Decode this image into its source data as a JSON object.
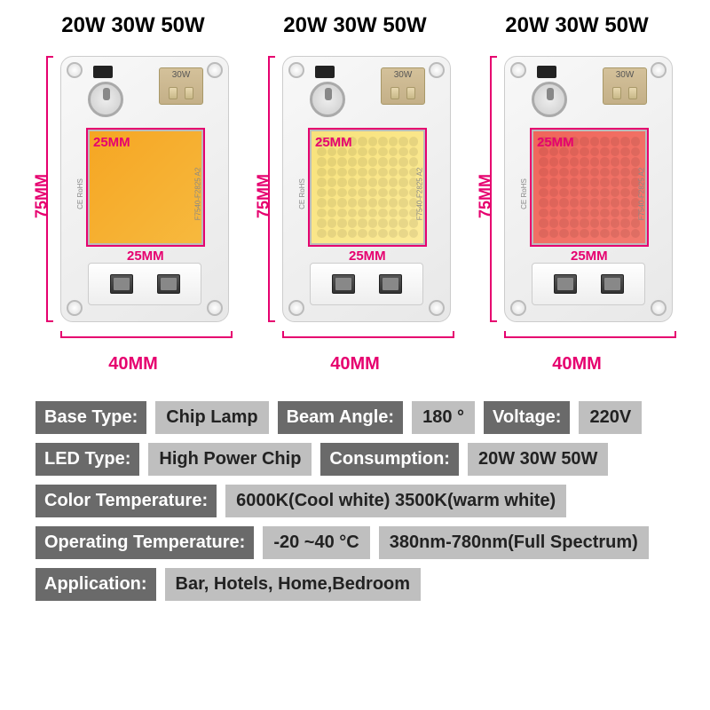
{
  "chips": [
    {
      "wattage": "20W 30W 50W",
      "height_label": "75MM",
      "width_label": "40MM",
      "inner_top": "25MM",
      "inner_bottom": "25MM",
      "led_color": "#f5a623",
      "led_color2": "#f7b93e",
      "comp_label": "30W",
      "side_right": "F7540-F2825 A2",
      "side_left": "CE  RoHS",
      "dotted": false
    },
    {
      "wattage": "20W 30W 50W",
      "height_label": "75MM",
      "width_label": "40MM",
      "inner_top": "25MM",
      "inner_bottom": "25MM",
      "led_color": "#f8e27a",
      "led_color2": "#fceb9a",
      "comp_label": "30W",
      "side_right": "F7540-F2825 A2",
      "side_left": "CE  RoHS",
      "dotted": true
    },
    {
      "wattage": "20W 30W 50W",
      "height_label": "75MM",
      "width_label": "40MM",
      "inner_top": "25MM",
      "inner_bottom": "25MM",
      "led_color": "#f0655a",
      "led_color2": "#f27a6e",
      "comp_label": "30W",
      "side_right": "F7540-F2825 A2",
      "side_left": "CE  RoHS",
      "dotted": true
    }
  ],
  "specs": {
    "row1": {
      "base_type_l": "Base Type:",
      "base_type_v": "Chip Lamp",
      "beam_l": "Beam Angle:",
      "beam_v": "180 °",
      "volt_l": "Voltage:",
      "volt_v": "220V"
    },
    "row2": {
      "led_l": "LED Type:",
      "led_v": "High Power Chip",
      "cons_l": "Consumption:",
      "cons_v": "20W 30W 50W"
    },
    "row3": {
      "ct_l": "Color Temperature:",
      "ct_v": "6000K(Cool white) 3500K(warm white)"
    },
    "row4": {
      "ot_l": "Operating Temperature:",
      "ot_v": "-20 ~40 °C",
      "spec_v": "380nm-780nm(Full Spectrum)"
    },
    "row5": {
      "app_l": "Application:",
      "app_v": "Bar, Hotels, Home,Bedroom"
    }
  },
  "colors": {
    "accent": "#e6006f"
  }
}
